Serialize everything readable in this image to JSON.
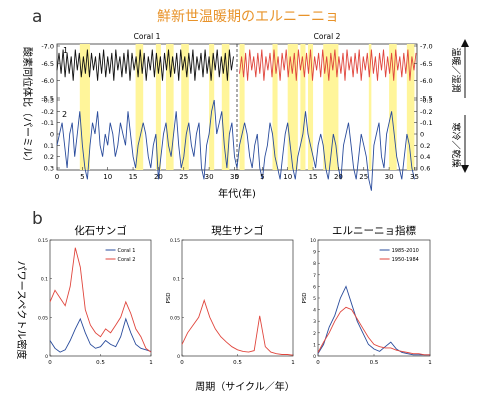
{
  "header": {
    "title": "鮮新世温暖期のエルニーニョ",
    "title_color": "#e8932a",
    "label_a": "a",
    "label_b": "b",
    "ylabel_left": "酸素同位体比（パーミル）",
    "ylabel_right_top": "温暖／湿潤",
    "ylabel_right_bottom": "寒冷／乾燥",
    "xlabel_top": "年代(年)",
    "xlabel_bottom": "周期（サイクル／年）",
    "ylabel_bottom": "パワースペクトル密度"
  },
  "chart_data": [
    {
      "type": "line",
      "title": "",
      "panel_labels": [
        "Coral 1",
        "Coral 2"
      ],
      "trace_labels": [
        "1",
        "2"
      ],
      "highlight_color": "#fff59a",
      "series": [
        {
          "name": "",
          "color": "#111111",
          "x": [
            0,
            0.4,
            0.8,
            1.2,
            1.6,
            2.0,
            2.4,
            2.8,
            3.2,
            3.6,
            4.0,
            4.4,
            4.8,
            5.2,
            5.6,
            6.0,
            6.4,
            6.8,
            7.2,
            7.6,
            8.0,
            8.4,
            8.8,
            9.2,
            9.6,
            10.0,
            10.4,
            10.8,
            11.2,
            11.6,
            12.0,
            12.4,
            12.8,
            13.2,
            13.6,
            14.0,
            14.4,
            14.8,
            15.2,
            15.6,
            16.0,
            16.4,
            16.8,
            17.2,
            17.6,
            18.0,
            18.4,
            18.8,
            19.2,
            19.6,
            20.0,
            20.4,
            20.8,
            21.2,
            21.6,
            22.0,
            22.4,
            22.8,
            23.2,
            23.6,
            24.0,
            24.4,
            24.8,
            25.2,
            25.6,
            26.0,
            26.4,
            26.8,
            27.2,
            27.6,
            28.0,
            28.4,
            28.8,
            29.2,
            29.6,
            30.0,
            30.4,
            30.8,
            31.2,
            31.6,
            32.0,
            32.4,
            32.8,
            33.2,
            33.6,
            34.0,
            34.4,
            34.8
          ],
          "values": [
            -6.3,
            -6.8,
            -6.2,
            -6.9,
            -6.1,
            -6.8,
            -6.2,
            -6.7,
            -6.0,
            -6.9,
            -6.3,
            -6.8,
            -6.1,
            -6.7,
            -6.2,
            -6.9,
            -6.1,
            -6.8,
            -6.3,
            -6.7,
            -6.0,
            -6.8,
            -6.2,
            -6.9,
            -6.1,
            -6.7,
            -6.2,
            -6.8,
            -6.0,
            -6.9,
            -6.3,
            -6.7,
            -6.1,
            -6.8,
            -6.2,
            -6.9,
            -6.0,
            -6.8,
            -6.3,
            -6.7,
            -6.1,
            -6.9,
            -6.2,
            -6.8,
            -6.0,
            -6.7,
            -6.3,
            -6.9,
            -6.1,
            -6.8,
            -6.2,
            -6.7,
            -6.0,
            -6.8,
            -6.3,
            -6.9,
            -6.1,
            -6.7,
            -6.2,
            -6.8,
            -6.0,
            -6.9,
            -6.3,
            -6.7,
            -6.1,
            -6.8,
            -6.2,
            -6.9,
            -6.0,
            -6.7,
            -6.3,
            -6.8,
            -6.1,
            -6.9,
            -6.2,
            -6.7,
            -6.0,
            -6.8,
            -6.3,
            -6.9,
            -6.1,
            -6.7,
            -6.2,
            -6.8,
            -6.0,
            -6.9,
            -6.3,
            -6.7
          ]
        },
        {
          "name": "",
          "color": "#e0463d",
          "x": [
            36,
            36.4,
            36.8,
            37.2,
            37.6,
            38.0,
            38.4,
            38.8,
            39.2,
            39.6,
            40.0,
            40.4,
            40.8,
            41.2,
            41.6,
            42.0,
            42.4,
            42.8,
            43.2,
            43.6,
            44.0,
            44.4,
            44.8,
            45.2,
            45.6,
            46.0,
            46.4,
            46.8,
            47.2,
            47.6,
            48.0,
            48.4,
            48.8,
            49.2,
            49.6,
            50.0,
            50.4,
            50.8,
            51.2,
            51.6,
            52.0,
            52.4,
            52.8,
            53.2,
            53.6,
            54.0,
            54.4,
            54.8,
            55.2,
            55.6,
            56.0,
            56.4,
            56.8,
            57.2,
            57.6,
            58.0,
            58.4,
            58.8,
            59.2,
            59.6,
            60.0,
            60.4,
            60.8,
            61.2,
            61.6,
            62.0,
            62.4,
            62.8,
            63.2,
            63.6,
            64.0,
            64.4,
            64.8,
            65.2,
            65.6,
            66.0,
            66.4,
            66.8,
            67.2,
            67.6,
            68.0,
            68.4,
            68.8,
            69.2,
            69.6,
            70.0,
            70.4,
            70.8
          ],
          "values": [
            -6.2,
            -6.7,
            -6.1,
            -6.8,
            -6.0,
            -6.9,
            -6.3,
            -6.7,
            -6.1,
            -6.8,
            -6.2,
            -6.9,
            -6.0,
            -6.7,
            -6.3,
            -6.8,
            -6.1,
            -6.9,
            -6.2,
            -6.7,
            -6.0,
            -6.8,
            -6.3,
            -6.9,
            -6.1,
            -6.7,
            -6.2,
            -6.8,
            -6.0,
            -6.9,
            -6.3,
            -6.7,
            -6.1,
            -6.8,
            -6.2,
            -6.9,
            -6.0,
            -6.7,
            -6.3,
            -6.8,
            -6.1,
            -6.9,
            -6.2,
            -6.7,
            -6.0,
            -6.8,
            -6.3,
            -6.9,
            -6.1,
            -6.7,
            -6.2,
            -6.8,
            -6.0,
            -6.9,
            -6.3,
            -6.7,
            -6.1,
            -6.8,
            -6.2,
            -6.9,
            -6.0,
            -6.7,
            -6.3,
            -6.8,
            -6.1,
            -6.9,
            -6.2,
            -6.7,
            -6.0,
            -6.8,
            -6.3,
            -6.9,
            -6.1,
            -6.7,
            -6.2,
            -6.8,
            -6.0,
            -6.9,
            -6.3,
            -6.7,
            -6.1,
            -6.8,
            -6.2,
            -6.9,
            -6.0,
            -6.7,
            -6.3,
            -6.8
          ]
        },
        {
          "name": "",
          "color": "#2a4c9c",
          "x": [
            0,
            0.5,
            1.0,
            1.5,
            2.0,
            2.5,
            3.0,
            3.5,
            4.0,
            4.5,
            5.0,
            5.5,
            6.0,
            6.5,
            7.0,
            7.5,
            8.0,
            8.5,
            9.0,
            9.5,
            10.0,
            10.5,
            11.0,
            11.5,
            12.0,
            12.5,
            13.0,
            13.5,
            14.0,
            14.5,
            15.0,
            15.5,
            16.0,
            16.5,
            17.0,
            17.5,
            18.0,
            18.5,
            19.0,
            19.5,
            20.0,
            20.5,
            21.0,
            21.5,
            22.0,
            22.5,
            23.0,
            23.5,
            24.0,
            24.5,
            25.0,
            25.5,
            26.0,
            26.5,
            27.0,
            27.5,
            28.0,
            28.5,
            29.0,
            29.5,
            30.0,
            30.5,
            31.0,
            31.5,
            32.0,
            32.5,
            33.0,
            33.5,
            34.0,
            34.5,
            35.0,
            35.5,
            36.0,
            36.5,
            37.0,
            37.5,
            38.0,
            38.5,
            39.0,
            39.5,
            40.0,
            40.5,
            41.0,
            41.5,
            42.0,
            42.5,
            43.0,
            43.5,
            44.0,
            44.5,
            45.0,
            45.5,
            46.0,
            46.5,
            47.0,
            47.5,
            48.0,
            48.5,
            49.0,
            49.5,
            50.0,
            50.5,
            51.0,
            51.5,
            52.0,
            52.5,
            53.0,
            53.5,
            54.0,
            54.5,
            55.0,
            55.5,
            56.0,
            56.5,
            57.0,
            57.5,
            58.0,
            58.5,
            59.0,
            59.5,
            60.0,
            60.5,
            61.0,
            61.5,
            62.0,
            62.5,
            63.0,
            63.5,
            64.0,
            64.5,
            65.0,
            65.5,
            66.0,
            66.5,
            67.0,
            67.5,
            68.0,
            68.5,
            69.0,
            69.5,
            70.0,
            70.5
          ],
          "values": [
            0.1,
            0.0,
            -0.1,
            0.1,
            0.3,
            0.0,
            -0.1,
            0.2,
            0.0,
            -0.2,
            0.1,
            0.3,
            0.4,
            0.1,
            -0.1,
            0.0,
            -0.2,
            0.1,
            0.2,
            0.0,
            0.1,
            -0.1,
            0.0,
            0.2,
            0.1,
            -0.1,
            0.0,
            0.1,
            -0.2,
            0.0,
            0.2,
            0.3,
            0.1,
            0.0,
            -0.1,
            0.0,
            0.2,
            0.3,
            0.1,
            0.0,
            0.4,
            0.2,
            0.0,
            -0.1,
            0.1,
            0.2,
            0.0,
            -0.2,
            0.1,
            0.3,
            0.2,
            0.0,
            -0.1,
            0.1,
            0.2,
            0.0,
            -0.1,
            0.3,
            0.4,
            0.1,
            0.0,
            -0.2,
            -0.3,
            0.0,
            -0.1,
            -0.2,
            0.1,
            0.3,
            0.0,
            -0.1,
            0.2,
            0.3,
            0.1,
            0.0,
            -0.1,
            0.0,
            0.2,
            0.3,
            0.1,
            0.0,
            0.3,
            0.4,
            0.2,
            0.1,
            -0.1,
            0.0,
            0.2,
            0.3,
            0.4,
            0.2,
            0.0,
            -0.1,
            0.1,
            0.3,
            0.4,
            0.2,
            0.1,
            0.0,
            -0.2,
            0.0,
            0.1,
            0.2,
            0.3,
            0.1,
            0.0,
            0.1,
            0.3,
            0.4,
            0.2,
            0.0,
            0.1,
            0.3,
            0.4,
            0.1,
            0.0,
            -0.1,
            0.1,
            0.3,
            0.4,
            0.2,
            0.0,
            0.1,
            0.2,
            0.4,
            0.5,
            0.1,
            0.0,
            -0.1,
            0.2,
            0.3,
            0.0,
            -0.1,
            -0.2,
            0.0,
            0.2,
            0.3,
            0.4,
            0.2,
            0.0,
            0.1,
            0.3,
            0.4
          ]
        }
      ],
      "x_ticks_coral1": [
        0,
        5,
        10,
        15,
        20,
        25,
        30,
        35
      ],
      "x_ticks_coral2": [
        0,
        5,
        10,
        15,
        20,
        25,
        30,
        35
      ],
      "y_ticks_left": [
        "-7.0",
        "-6.5",
        "-6.0",
        "-5.5",
        "-0.3",
        "-0.2",
        "-0.1",
        "0",
        "0.1",
        "0.2",
        "0.3"
      ],
      "y_ticks_right": [
        "-7.0",
        "-6.5",
        "-6.0",
        "-5.5",
        "-0.3",
        "-0.2",
        "-0.1",
        "0",
        "0.2",
        "0.4",
        "0.6"
      ],
      "highlights": [
        [
          4.5,
          6.5
        ],
        [
          15.5,
          17.0
        ],
        [
          19.5,
          20.5
        ],
        [
          21.5,
          23.0
        ],
        [
          24.5,
          26.0
        ],
        [
          30.0,
          31.0
        ],
        [
          32.5,
          34.0
        ],
        [
          36.0,
          37.0
        ],
        [
          42.5,
          43.5
        ],
        [
          45.5,
          47.5
        ],
        [
          48.0,
          49.0
        ],
        [
          49.5,
          50.5
        ],
        [
          52.5,
          55.5
        ],
        [
          61.5,
          62.0
        ],
        [
          65.5,
          67.0
        ],
        [
          69.0,
          70.5
        ]
      ]
    },
    {
      "type": "line",
      "title": "化石サンゴ",
      "ylabel": "",
      "x_ticks": [
        "0",
        "0.5",
        "1"
      ],
      "y_ticks": [
        "0",
        "0.05",
        "0.1",
        "0.15"
      ],
      "ylim": [
        0,
        0.15
      ],
      "series": [
        {
          "name": "Coral 1",
          "color": "#2a4c9c",
          "x": [
            0,
            0.05,
            0.1,
            0.15,
            0.2,
            0.25,
            0.3,
            0.35,
            0.4,
            0.45,
            0.5,
            0.55,
            0.6,
            0.65,
            0.7,
            0.75,
            0.8,
            0.85,
            0.9,
            0.95,
            1.0
          ],
          "values": [
            0.02,
            0.01,
            0.005,
            0.008,
            0.02,
            0.035,
            0.048,
            0.03,
            0.015,
            0.01,
            0.012,
            0.02,
            0.015,
            0.012,
            0.025,
            0.048,
            0.03,
            0.015,
            0.01,
            0.008,
            0.006
          ]
        },
        {
          "name": "Coral 2",
          "color": "#e0463d",
          "x": [
            0,
            0.05,
            0.1,
            0.15,
            0.2,
            0.25,
            0.3,
            0.35,
            0.4,
            0.45,
            0.5,
            0.55,
            0.6,
            0.65,
            0.7,
            0.75,
            0.8,
            0.85,
            0.9,
            0.95,
            1.0
          ],
          "values": [
            0.07,
            0.085,
            0.075,
            0.065,
            0.09,
            0.14,
            0.115,
            0.06,
            0.04,
            0.03,
            0.025,
            0.035,
            0.03,
            0.04,
            0.05,
            0.07,
            0.055,
            0.035,
            0.025,
            0.01,
            0.005
          ]
        }
      ]
    },
    {
      "type": "line",
      "title": "現生サンゴ",
      "ylabel": "PSD",
      "x_ticks": [
        "0",
        "0.5",
        "1"
      ],
      "y_ticks": [
        "0",
        "0.05",
        "0.1",
        "0.15"
      ],
      "ylim": [
        0,
        0.15
      ],
      "series": [
        {
          "name": "",
          "color": "#e0463d",
          "x": [
            0,
            0.05,
            0.1,
            0.15,
            0.2,
            0.25,
            0.3,
            0.35,
            0.4,
            0.45,
            0.5,
            0.55,
            0.6,
            0.65,
            0.7,
            0.75,
            0.8,
            0.85,
            0.9,
            0.95,
            1.0
          ],
          "values": [
            0.015,
            0.03,
            0.04,
            0.05,
            0.072,
            0.05,
            0.035,
            0.025,
            0.018,
            0.012,
            0.008,
            0.006,
            0.005,
            0.007,
            0.052,
            0.012,
            0.005,
            0.003,
            0.002,
            0.002,
            0.001
          ]
        }
      ]
    },
    {
      "type": "line",
      "title": "エルニーニョ指標",
      "ylabel": "PSD",
      "x_ticks": [
        "0",
        "0.5",
        "1"
      ],
      "y_ticks": [
        "0",
        "1",
        "2",
        "3",
        "4",
        "5",
        "6",
        "7",
        "8",
        "9",
        "10"
      ],
      "ylim": [
        0,
        10
      ],
      "series": [
        {
          "name": "1985-2010",
          "color": "#2a4c9c",
          "x": [
            0,
            0.05,
            0.1,
            0.15,
            0.2,
            0.25,
            0.3,
            0.35,
            0.4,
            0.45,
            0.5,
            0.55,
            0.6,
            0.65,
            0.7,
            0.75,
            0.8,
            0.85,
            0.9,
            0.95,
            1.0
          ],
          "values": [
            0.2,
            1.0,
            2.5,
            3.5,
            5.0,
            6.0,
            4.5,
            3.0,
            2.0,
            1.0,
            0.6,
            0.4,
            0.8,
            1.2,
            0.6,
            0.3,
            0.2,
            0.1,
            0.1,
            0.1,
            0.1
          ]
        },
        {
          "name": "1950-1984",
          "color": "#e0463d",
          "x": [
            0,
            0.05,
            0.1,
            0.15,
            0.2,
            0.25,
            0.3,
            0.35,
            0.4,
            0.45,
            0.5,
            0.55,
            0.6,
            0.65,
            0.7,
            0.75,
            0.8,
            0.85,
            0.9,
            0.95,
            1.0
          ],
          "values": [
            0.3,
            1.2,
            2.0,
            3.0,
            3.8,
            4.2,
            4.0,
            3.2,
            2.4,
            1.6,
            1.0,
            0.8,
            0.7,
            0.7,
            0.5,
            0.4,
            0.3,
            0.2,
            0.2,
            0.1,
            0.1
          ]
        }
      ]
    }
  ]
}
